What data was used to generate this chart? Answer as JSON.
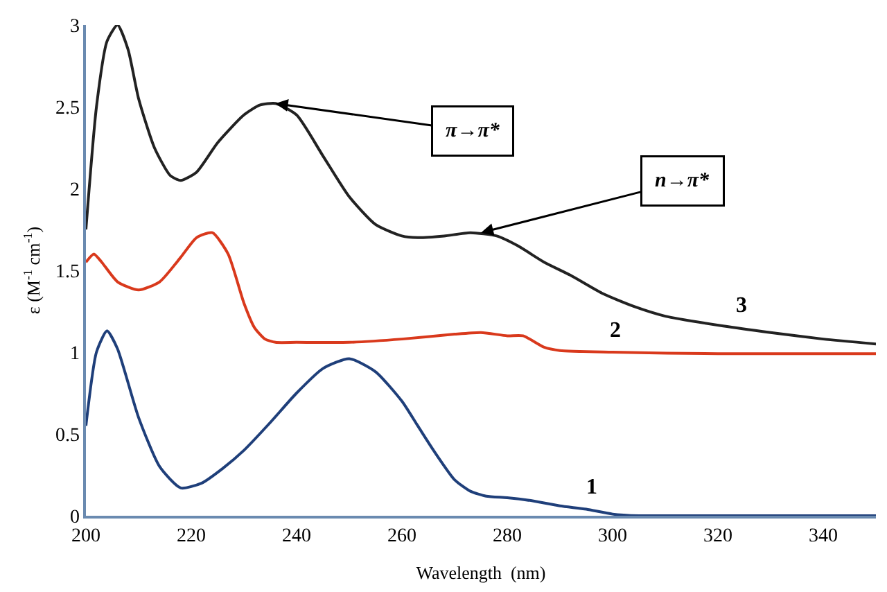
{
  "chart_data": {
    "type": "line",
    "xlabel": "Wavelength  (nm)",
    "ylabel": "ε (M$^{-1}$ cm$^{-1}$)",
    "xlim": [
      200,
      350
    ],
    "xticks": [
      200,
      220,
      240,
      260,
      280,
      300,
      320,
      340
    ],
    "ylim": [
      0,
      3
    ],
    "yticks": [
      0,
      0.5,
      1,
      1.5,
      2,
      2.5,
      3
    ],
    "legend": false,
    "marker": "none",
    "line_style": "solid",
    "series": [
      {
        "name": "1",
        "color": "#1f3f7a",
        "x": [
          200,
          202,
          204,
          206,
          210,
          214,
          218,
          222,
          226,
          230,
          235,
          240,
          245,
          250,
          255,
          260,
          263,
          266,
          270,
          273,
          276,
          280,
          285,
          290,
          295,
          300,
          305,
          310,
          320,
          335,
          350
        ],
        "values": [
          0.55,
          1.0,
          1.13,
          1.02,
          0.6,
          0.3,
          0.17,
          0.2,
          0.29,
          0.4,
          0.57,
          0.75,
          0.9,
          0.96,
          0.88,
          0.7,
          0.55,
          0.4,
          0.22,
          0.15,
          0.12,
          0.11,
          0.09,
          0.06,
          0.04,
          0.01,
          0.0,
          0.0,
          0.0,
          0.0,
          0.0
        ]
      },
      {
        "name": "2",
        "color": "#d9391c",
        "x": [
          200,
          201.5,
          203,
          206,
          210,
          214,
          218,
          221,
          224,
          227,
          230,
          232,
          234,
          236,
          240,
          250,
          260,
          270,
          275,
          280,
          283,
          287,
          290,
          300,
          320,
          350
        ],
        "values": [
          1.55,
          1.6,
          1.55,
          1.43,
          1.38,
          1.43,
          1.58,
          1.7,
          1.73,
          1.6,
          1.3,
          1.15,
          1.08,
          1.06,
          1.06,
          1.06,
          1.08,
          1.11,
          1.12,
          1.1,
          1.1,
          1.03,
          1.01,
          1.0,
          0.99,
          0.99
        ]
      },
      {
        "name": "3",
        "color": "#222222",
        "x": [
          200,
          202,
          204,
          206,
          208,
          210,
          213,
          216,
          218,
          221,
          225,
          230,
          233,
          236,
          240,
          245,
          250,
          255,
          260,
          263,
          268,
          273,
          278,
          282,
          287,
          292,
          298,
          304,
          310,
          321,
          330,
          340,
          350
        ],
        "values": [
          1.75,
          2.5,
          2.9,
          3.0,
          2.85,
          2.55,
          2.25,
          2.08,
          2.05,
          2.1,
          2.28,
          2.45,
          2.51,
          2.52,
          2.45,
          2.2,
          1.95,
          1.78,
          1.71,
          1.7,
          1.71,
          1.73,
          1.71,
          1.65,
          1.55,
          1.47,
          1.36,
          1.28,
          1.22,
          1.16,
          1.12,
          1.08,
          1.05
        ]
      }
    ],
    "annotations": [
      {
        "text": "π→π*",
        "x": 236,
        "y": 2.52
      },
      {
        "text": "n→π*",
        "x": 275,
        "y": 1.73
      }
    ]
  }
}
